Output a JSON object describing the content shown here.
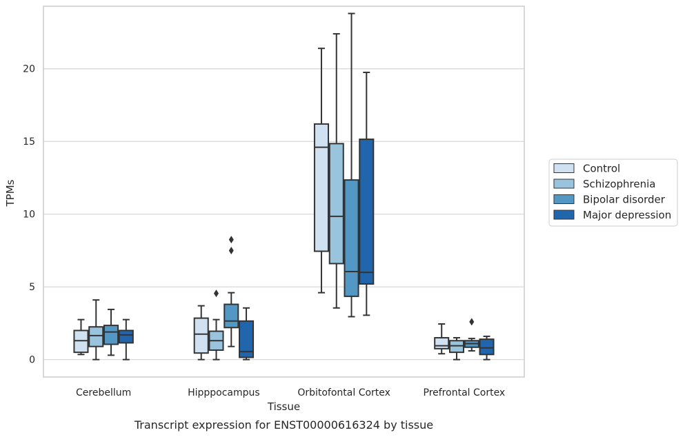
{
  "chart_data": {
    "type": "box",
    "caption": "Transcript expression for ENST00000616324 by tissue",
    "xlabel": "Tissue",
    "ylabel": "TPMs",
    "ylim": [
      -1.2,
      24.3
    ],
    "yticks": [
      0,
      5,
      10,
      15,
      20
    ],
    "grid": "horizontal",
    "legend_position": "right",
    "categories": [
      "Cerebellum",
      "Hipppocampus",
      "Orbitofontal Cortex",
      "Prefrontal Cortex"
    ],
    "series": [
      {
        "name": "Control",
        "color": "#d0e2f2",
        "boxes": [
          {
            "whislo": 0.35,
            "q1": 0.5,
            "med": 1.3,
            "q3": 2.0,
            "whishi": 2.75,
            "fliers": []
          },
          {
            "whislo": 0.0,
            "q1": 0.45,
            "med": 1.75,
            "q3": 2.85,
            "whishi": 3.7,
            "fliers": []
          },
          {
            "whislo": 4.6,
            "q1": 7.45,
            "med": 14.6,
            "q3": 16.2,
            "whishi": 21.4,
            "fliers": []
          },
          {
            "whislo": 0.4,
            "q1": 0.75,
            "med": 0.95,
            "q3": 1.5,
            "whishi": 2.45,
            "fliers": []
          }
        ]
      },
      {
        "name": "Schizophrenia",
        "color": "#9ac4de",
        "boxes": [
          {
            "whislo": 0.0,
            "q1": 0.9,
            "med": 1.65,
            "q3": 2.25,
            "whishi": 4.1,
            "fliers": []
          },
          {
            "whislo": 0.0,
            "q1": 0.65,
            "med": 1.3,
            "q3": 1.95,
            "whishi": 2.75,
            "fliers": [
              4.55
            ]
          },
          {
            "whislo": 3.55,
            "q1": 6.6,
            "med": 9.85,
            "q3": 14.85,
            "whishi": 22.4,
            "fliers": []
          },
          {
            "whislo": 0.0,
            "q1": 0.5,
            "med": 0.95,
            "q3": 1.3,
            "whishi": 1.5,
            "fliers": []
          }
        ]
      },
      {
        "name": "Bipolar disorder",
        "color": "#5397c4",
        "boxes": [
          {
            "whislo": 0.3,
            "q1": 1.05,
            "med": 1.9,
            "q3": 2.35,
            "whishi": 3.45,
            "fliers": []
          },
          {
            "whislo": 0.9,
            "q1": 2.2,
            "med": 2.65,
            "q3": 3.8,
            "whishi": 4.6,
            "fliers": [
              7.5,
              8.25
            ]
          },
          {
            "whislo": 2.95,
            "q1": 4.35,
            "med": 6.05,
            "q3": 12.35,
            "whishi": 23.8,
            "fliers": []
          },
          {
            "whislo": 0.6,
            "q1": 0.85,
            "med": 1.1,
            "q3": 1.3,
            "whishi": 1.45,
            "fliers": [
              2.6
            ]
          }
        ]
      },
      {
        "name": "Major depression",
        "color": "#2166ac",
        "boxes": [
          {
            "whislo": 0.0,
            "q1": 1.15,
            "med": 1.7,
            "q3": 2.0,
            "whishi": 2.75,
            "fliers": []
          },
          {
            "whislo": 0.0,
            "q1": 0.15,
            "med": 0.55,
            "q3": 2.65,
            "whishi": 3.55,
            "fliers": []
          },
          {
            "whislo": 3.05,
            "q1": 5.2,
            "med": 6.0,
            "q3": 15.15,
            "whishi": 19.75,
            "fliers": []
          },
          {
            "whislo": 0.0,
            "q1": 0.35,
            "med": 0.8,
            "q3": 1.4,
            "whishi": 1.6,
            "fliers": []
          }
        ]
      }
    ]
  }
}
